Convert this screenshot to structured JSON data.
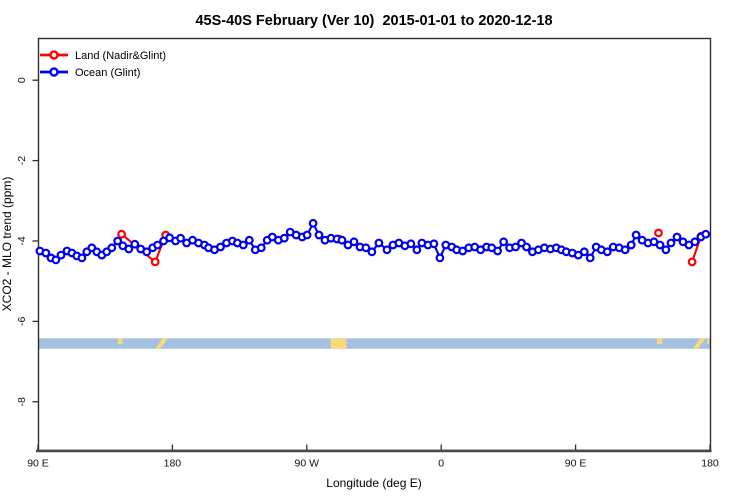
{
  "chart_data": {
    "type": "line",
    "title": "45S-40S February (Ver 10)  2015-01-01 to 2020-12-18",
    "xlabel": "Longitude (deg E)",
    "ylabel": "XCO2 - MLO trend (ppm)",
    "grid": false,
    "x_axis": {
      "min": 90,
      "max": 540,
      "ticks": [
        {
          "value": 90,
          "label": "90 E"
        },
        {
          "value": 180,
          "label": "180"
        },
        {
          "value": 270,
          "label": "90 W"
        },
        {
          "value": 360,
          "label": "0"
        },
        {
          "value": 450,
          "label": "90 E"
        },
        {
          "value": 540,
          "label": "180"
        }
      ]
    },
    "y_axis": {
      "min": -9.2,
      "max": 1.05,
      "ticks": [
        {
          "value": 0,
          "label": "0"
        },
        {
          "value": -2,
          "label": "-2"
        },
        {
          "value": -4,
          "label": "-4"
        },
        {
          "value": -6,
          "label": "-6"
        },
        {
          "value": -8,
          "label": "-8"
        }
      ]
    },
    "legend": {
      "position": "top-left",
      "entries": [
        {
          "label": "Land (Nadir&Glint)",
          "color": "#ff0000"
        },
        {
          "label": "Ocean (Glint)",
          "color": "#0000ee"
        }
      ]
    },
    "series": [
      {
        "name": "Land (Nadir&Glint)",
        "color": "#ff0000",
        "marker": "open-circle",
        "segments": [
          [
            [
              146,
              -3.83
            ],
            [
              168.5,
              -4.52
            ],
            [
              175.5,
              -3.85
            ]
          ],
          [
            [
              291.5,
              -3.95
            ]
          ],
          [
            [
              505.5,
              -3.8
            ]
          ],
          [
            [
              528,
              -4.52
            ],
            [
              534,
              -3.88
            ]
          ]
        ]
      },
      {
        "name": "Ocean (Glint)",
        "color": "#0000ee",
        "marker": "open-circle",
        "segments": [
          [
            [
              91.3,
              -4.25
            ],
            [
              95.3,
              -4.3
            ],
            [
              98.7,
              -4.42
            ],
            [
              102,
              -4.47
            ],
            [
              105.4,
              -4.35
            ],
            [
              109.4,
              -4.25
            ],
            [
              112.7,
              -4.3
            ],
            [
              116,
              -4.37
            ],
            [
              119.4,
              -4.42
            ],
            [
              122.7,
              -4.27
            ],
            [
              126,
              -4.17
            ],
            [
              129.4,
              -4.27
            ],
            [
              132.7,
              -4.35
            ],
            [
              136,
              -4.27
            ],
            [
              139.4,
              -4.17
            ],
            [
              143.4,
              -4.0
            ],
            [
              146.8,
              -4.12
            ],
            [
              150.8,
              -4.2
            ],
            [
              154.8,
              -4.08
            ],
            [
              158.8,
              -4.2
            ],
            [
              162.8,
              -4.27
            ],
            [
              166.8,
              -4.17
            ],
            [
              170.1,
              -4.1
            ],
            [
              174.1,
              -4.0
            ],
            [
              178.1,
              -3.92
            ],
            [
              182.1,
              -4.0
            ],
            [
              185.5,
              -3.93
            ],
            [
              189.5,
              -4.05
            ],
            [
              193.5,
              -3.98
            ],
            [
              197.5,
              -4.05
            ],
            [
              201.5,
              -4.1
            ],
            [
              204.2,
              -4.17
            ],
            [
              208.2,
              -4.22
            ],
            [
              212.2,
              -4.15
            ],
            [
              216.2,
              -4.05
            ],
            [
              220.2,
              -4.0
            ],
            [
              223.5,
              -4.05
            ],
            [
              227.5,
              -4.1
            ],
            [
              231.5,
              -3.98
            ],
            [
              235.5,
              -4.22
            ],
            [
              239.5,
              -4.17
            ],
            [
              243.5,
              -3.98
            ],
            [
              246.9,
              -3.9
            ],
            [
              250.9,
              -3.98
            ],
            [
              254.9,
              -3.93
            ],
            [
              258.9,
              -3.78
            ],
            [
              262.9,
              -3.85
            ],
            [
              266.9,
              -3.9
            ],
            [
              270.2,
              -3.85
            ],
            [
              274.2,
              -3.56
            ],
            [
              278.2,
              -3.85
            ],
            [
              282.2,
              -3.98
            ],
            [
              286.2,
              -3.93
            ],
            [
              290.2,
              -3.95
            ],
            [
              293.6,
              -3.98
            ],
            [
              297.6,
              -4.1
            ],
            [
              301.6,
              -4.02
            ],
            [
              305.6,
              -4.15
            ],
            [
              309.6,
              -4.17
            ],
            [
              313.6,
              -4.27
            ],
            [
              318.3,
              -4.05
            ],
            [
              323.7,
              -4.22
            ],
            [
              327.7,
              -4.1
            ],
            [
              331.7,
              -4.05
            ],
            [
              335.7,
              -4.12
            ],
            [
              339.7,
              -4.07
            ],
            [
              343.7,
              -4.22
            ],
            [
              347.1,
              -4.05
            ],
            [
              351.1,
              -4.1
            ],
            [
              355.1,
              -4.07
            ],
            [
              359.1,
              -4.42
            ],
            [
              363.1,
              -4.1
            ],
            [
              367.1,
              -4.15
            ],
            [
              370.4,
              -4.22
            ],
            [
              374.4,
              -4.25
            ],
            [
              378.4,
              -4.17
            ],
            [
              382.4,
              -4.15
            ],
            [
              386.4,
              -4.22
            ],
            [
              390.4,
              -4.15
            ],
            [
              393.8,
              -4.17
            ],
            [
              397.8,
              -4.25
            ],
            [
              401.8,
              -4.02
            ],
            [
              405.8,
              -4.17
            ],
            [
              409.8,
              -4.15
            ],
            [
              413.8,
              -4.05
            ],
            [
              417.1,
              -4.15
            ],
            [
              421.1,
              -4.27
            ],
            [
              425.1,
              -4.22
            ],
            [
              429.1,
              -4.17
            ],
            [
              433.1,
              -4.2
            ],
            [
              437.1,
              -4.17
            ],
            [
              440.5,
              -4.22
            ],
            [
              443.8,
              -4.27
            ],
            [
              447.8,
              -4.3
            ],
            [
              451.8,
              -4.35
            ],
            [
              455.8,
              -4.27
            ],
            [
              459.8,
              -4.42
            ],
            [
              463.8,
              -4.15
            ],
            [
              467.2,
              -4.22
            ],
            [
              471.2,
              -4.27
            ],
            [
              475.2,
              -4.15
            ],
            [
              479.2,
              -4.17
            ],
            [
              483.2,
              -4.22
            ],
            [
              487.2,
              -4.1
            ],
            [
              490.5,
              -3.85
            ],
            [
              494.5,
              -3.98
            ],
            [
              498.5,
              -4.05
            ],
            [
              502.5,
              -4.02
            ],
            [
              506.5,
              -4.1
            ],
            [
              510.5,
              -4.22
            ],
            [
              513.9,
              -4.05
            ],
            [
              517.9,
              -3.9
            ],
            [
              521.9,
              -4.02
            ],
            [
              525.9,
              -4.1
            ],
            [
              529.9,
              -4.02
            ],
            [
              533.9,
              -3.9
            ],
            [
              537.2,
              -3.83
            ]
          ]
        ]
      }
    ],
    "surface_band": {
      "value_top": -6.42,
      "value_bottom": -6.68,
      "ocean_color": "#a5c1e0",
      "land_color": "#fbd97a",
      "land_patches": [
        {
          "from": 143.5,
          "to": 146.5,
          "shape": "upper"
        },
        {
          "from": 168.5,
          "to": 177,
          "shape": "slash"
        },
        {
          "from": 286,
          "to": 296.5,
          "shape": "full"
        },
        {
          "from": 504.5,
          "to": 508,
          "shape": "upper"
        },
        {
          "from": 528.5,
          "to": 537,
          "shape": "slash"
        },
        {
          "from": 538,
          "to": 539.5,
          "shape": "upper"
        }
      ]
    }
  }
}
